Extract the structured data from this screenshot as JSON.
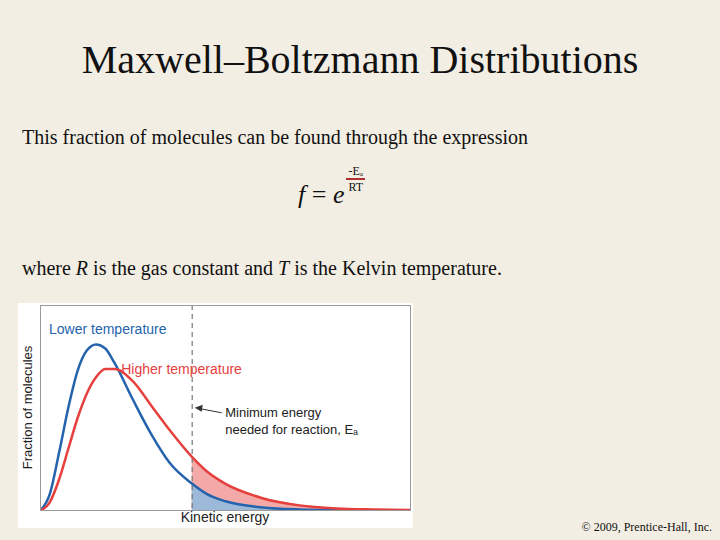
{
  "slide": {
    "title": "Maxwell–Boltzmann Distributions",
    "text_before": "This fraction of molecules can be found through the expression",
    "formula": {
      "lhs": "f",
      "equals": "=",
      "base": "e",
      "numerator": "-Eₐ",
      "denominator": "RT"
    },
    "text_after": [
      {
        "text": "where "
      },
      {
        "text": "R",
        "italic": true
      },
      {
        "text": " is the gas constant and "
      },
      {
        "text": "T",
        "italic": true
      },
      {
        "text": " is the Kelvin temperature."
      }
    ],
    "footer": "© 2009, Prentice-Hall, Inc."
  },
  "chart_data": {
    "type": "line",
    "xlabel": "Kinetic energy",
    "ylabel": "Fraction of molecules",
    "x": [
      0,
      0.25,
      0.5,
      0.75,
      1,
      1.25,
      1.5,
      1.75,
      2,
      2.5,
      3,
      3.5,
      4.1,
      4.5,
      5,
      6,
      7,
      8,
      9,
      10
    ],
    "series": [
      {
        "name": "Lower temperature",
        "color": "#2563ad",
        "values": [
          0,
          0.8,
          2.8,
          5.0,
          6.8,
          7.8,
          8.1,
          7.9,
          7.2,
          5.4,
          3.7,
          2.3,
          1.3,
          0.8,
          0.45,
          0.15,
          0.05,
          0.02,
          0.01,
          0
        ]
      },
      {
        "name": "Higher temperature",
        "color": "#e5403e",
        "values": [
          0,
          0.4,
          1.5,
          3.0,
          4.5,
          5.7,
          6.5,
          6.9,
          6.9,
          6.3,
          5.1,
          3.9,
          2.6,
          1.9,
          1.3,
          0.6,
          0.25,
          0.1,
          0.05,
          0.02
        ]
      }
    ],
    "threshold": {
      "x": 4.1,
      "text": [
        "Minimum energy",
        "needed for reaction, Eₐ"
      ]
    },
    "xlim": [
      0,
      10
    ],
    "ylim": [
      0,
      10
    ],
    "xticks": [],
    "yticks": [],
    "tick_labels": false
  }
}
